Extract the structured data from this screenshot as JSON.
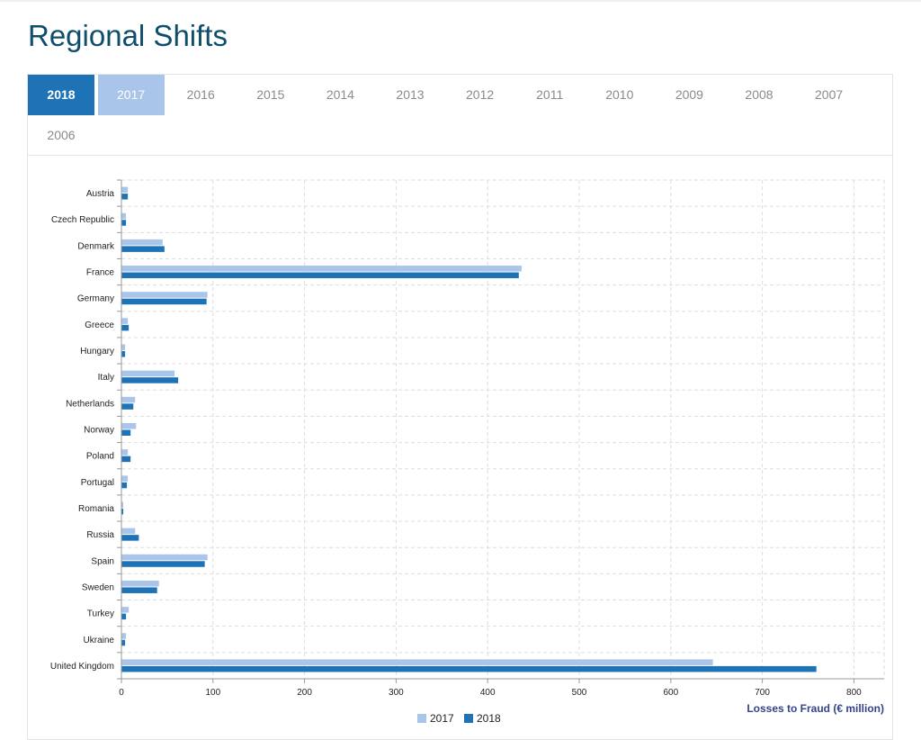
{
  "header": {
    "title": "Regional Shifts"
  },
  "tabs": [
    {
      "label": "2018",
      "state": "selected"
    },
    {
      "label": "2017",
      "state": "compared"
    },
    {
      "label": "2016",
      "state": "none"
    },
    {
      "label": "2015",
      "state": "none"
    },
    {
      "label": "2014",
      "state": "none"
    },
    {
      "label": "2013",
      "state": "none"
    },
    {
      "label": "2012",
      "state": "none"
    },
    {
      "label": "2011",
      "state": "none"
    },
    {
      "label": "2010",
      "state": "none"
    },
    {
      "label": "2009",
      "state": "none"
    },
    {
      "label": "2008",
      "state": "none"
    },
    {
      "label": "2007",
      "state": "none"
    },
    {
      "label": "2006",
      "state": "none"
    }
  ],
  "colors": {
    "series_2017": "#a9c5e9",
    "series_2018": "#1e73b7",
    "title": "#0e4d6b",
    "axis_title": "#34448a",
    "grid": "#dddddd"
  },
  "chart_data": {
    "type": "bar",
    "orientation": "horizontal",
    "categories": [
      "Austria",
      "Czech Republic",
      "Denmark",
      "France",
      "Germany",
      "Greece",
      "Hungary",
      "Italy",
      "Netherlands",
      "Norway",
      "Poland",
      "Portugal",
      "Romania",
      "Russia",
      "Spain",
      "Sweden",
      "Turkey",
      "Ukraine",
      "United Kingdom"
    ],
    "series": [
      {
        "name": "2017",
        "values": [
          7,
          5,
          45,
          437,
          94,
          7,
          4,
          58,
          15,
          16,
          7,
          7,
          2,
          15,
          94,
          41,
          8,
          5,
          646
        ]
      },
      {
        "name": "2018",
        "values": [
          7,
          5,
          47,
          434,
          93,
          8,
          4,
          62,
          13,
          10,
          10,
          6,
          2,
          19,
          91,
          39,
          5,
          4,
          759
        ]
      }
    ],
    "xlabel": "Losses to Fraud (€ million)",
    "ylabel": "",
    "xlim": [
      0,
      833
    ],
    "xticks": [
      0,
      100,
      200,
      300,
      400,
      500,
      600,
      700,
      800
    ],
    "grid": true,
    "legend_position": "bottom-center"
  }
}
